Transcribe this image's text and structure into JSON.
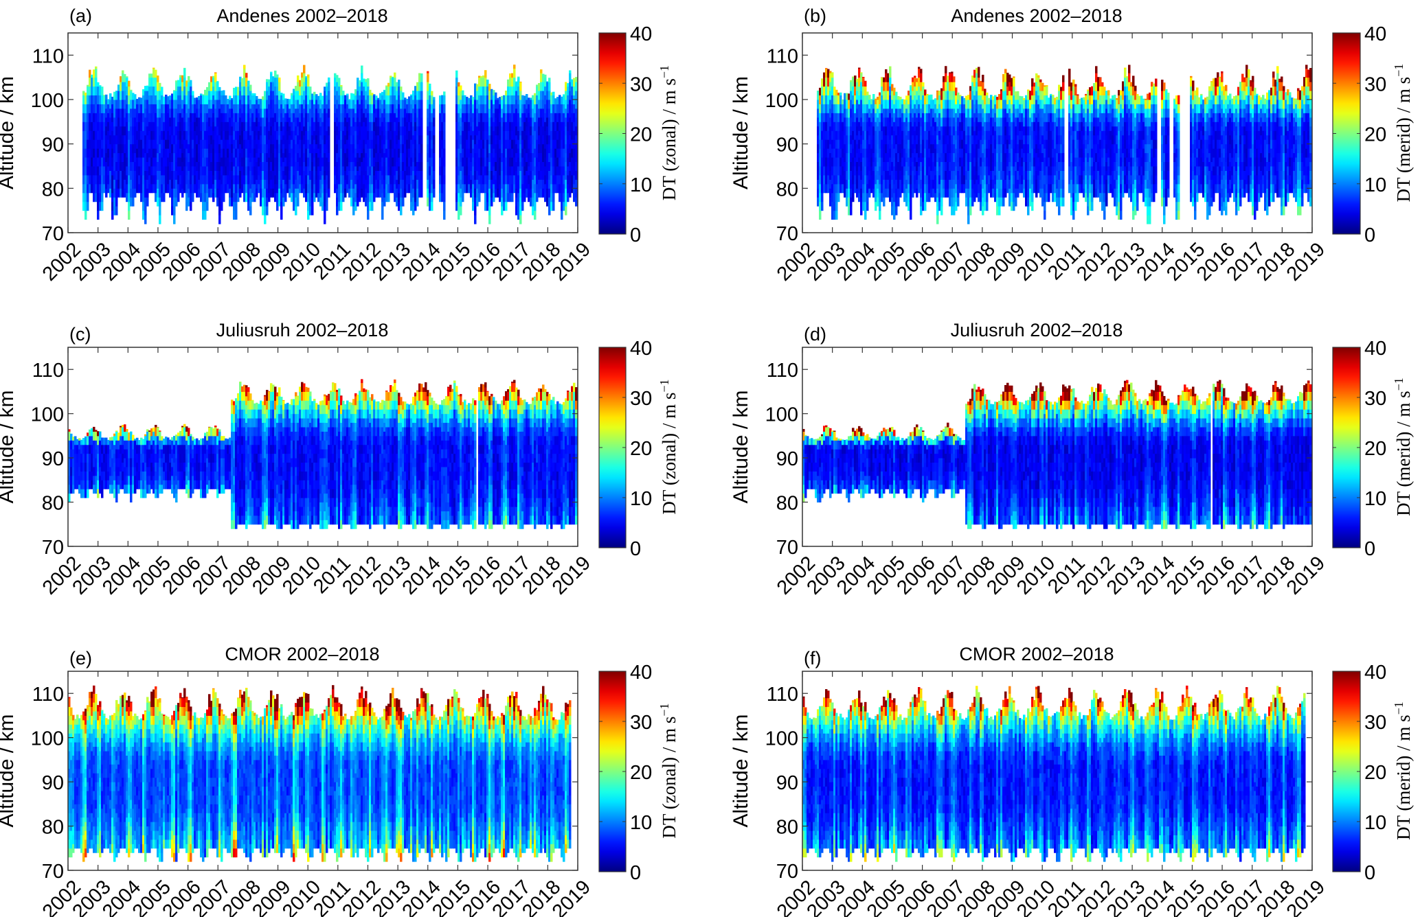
{
  "figure": {
    "description": "Time-altitude cross-sections of diurnal tide (DT) amplitudes, 2002-2018"
  },
  "chart_data": [
    {
      "id": "a",
      "type": "heatmap",
      "panel_label": "(a)",
      "title": "Andenes 2002–2018",
      "xlabel": "",
      "ylabel": "Altitude / km",
      "colorbar_label": "DT (zonal) / m s",
      "colorbar_unit_exp": "−1",
      "x_ticks": [
        "2002",
        "2003",
        "2004",
        "2005",
        "2006",
        "2007",
        "2008",
        "2009",
        "2010",
        "2011",
        "2012",
        "2013",
        "2014",
        "2015",
        "2016",
        "2017",
        "2018",
        "2019"
      ],
      "y_ticks": [
        "70",
        "80",
        "90",
        "100",
        "110"
      ],
      "cb_ticks": [
        "0",
        "10",
        "20",
        "30",
        "40"
      ],
      "xlim": [
        2002,
        2019
      ],
      "ylim": [
        70,
        115
      ],
      "clim": [
        0,
        40
      ],
      "colormap": "jet",
      "data_start": 2002.5,
      "data_end": 2018.95,
      "gaps": [
        [
          2010.75,
          2010.85
        ],
        [
          2013.72,
          2013.78
        ],
        [
          2013.8,
          2013.95
        ],
        [
          2014.25,
          2014.35
        ],
        [
          2014.6,
          2014.95
        ]
      ],
      "top_alt": [
        100,
        108
      ],
      "bottom_alt": [
        80,
        72
      ],
      "base_amp": 6,
      "top_amp": 20,
      "bottom_amp": 12
    },
    {
      "id": "b",
      "type": "heatmap",
      "panel_label": "(b)",
      "title": "Andenes 2002–2018",
      "xlabel": "",
      "ylabel": "Altitude / km",
      "colorbar_label": "DT (merid) / m s",
      "colorbar_unit_exp": "−1",
      "x_ticks": [
        "2002",
        "2003",
        "2004",
        "2005",
        "2006",
        "2007",
        "2008",
        "2009",
        "2010",
        "2011",
        "2012",
        "2013",
        "2014",
        "2015",
        "2016",
        "2017",
        "2018",
        "2019"
      ],
      "y_ticks": [
        "70",
        "80",
        "90",
        "100",
        "110"
      ],
      "cb_ticks": [
        "0",
        "10",
        "20",
        "30",
        "40"
      ],
      "xlim": [
        2002,
        2019
      ],
      "ylim": [
        70,
        115
      ],
      "clim": [
        0,
        40
      ],
      "colormap": "jet",
      "data_start": 2002.5,
      "data_end": 2018.95,
      "gaps": [
        [
          2010.75,
          2010.85
        ],
        [
          2013.72,
          2013.78
        ],
        [
          2013.8,
          2013.95
        ],
        [
          2014.25,
          2014.35
        ],
        [
          2014.6,
          2014.95
        ]
      ],
      "top_alt": [
        100,
        108
      ],
      "bottom_alt": [
        80,
        72
      ],
      "base_amp": 7,
      "top_amp": 38,
      "bottom_amp": 12
    },
    {
      "id": "c",
      "type": "heatmap",
      "panel_label": "(c)",
      "title": "Juliusruh 2002–2018",
      "xlabel": "",
      "ylabel": "Altitude / km",
      "colorbar_label": "DT (zonal) / m s",
      "colorbar_unit_exp": "−1",
      "x_ticks": [
        "2002",
        "2003",
        "2004",
        "2005",
        "2006",
        "2007",
        "2008",
        "2009",
        "2010",
        "2011",
        "2012",
        "2013",
        "2014",
        "2015",
        "2016",
        "2017",
        "2018",
        "2019"
      ],
      "y_ticks": [
        "70",
        "80",
        "90",
        "100",
        "110"
      ],
      "cb_ticks": [
        "0",
        "10",
        "20",
        "30",
        "40"
      ],
      "xlim": [
        2002,
        2019
      ],
      "ylim": [
        70,
        115
      ],
      "clim": [
        0,
        40
      ],
      "colormap": "jet",
      "data_start": 2002.0,
      "data_end": 2018.95,
      "gaps": [
        [
          2015.6,
          2015.7
        ]
      ],
      "regime_change": 2007.4,
      "top_alt_early": [
        94,
        98
      ],
      "bottom_alt_early": [
        84,
        80
      ],
      "top_alt": [
        102,
        108
      ],
      "bottom_alt": [
        76,
        74
      ],
      "base_amp": 7,
      "top_amp": 34,
      "bottom_amp": 14
    },
    {
      "id": "d",
      "type": "heatmap",
      "panel_label": "(d)",
      "title": "Juliusruh 2002–2018",
      "xlabel": "",
      "ylabel": "Altitude / km",
      "colorbar_label": "DT (merid) / m s",
      "colorbar_unit_exp": "−1",
      "x_ticks": [
        "2002",
        "2003",
        "2004",
        "2005",
        "2006",
        "2007",
        "2008",
        "2009",
        "2010",
        "2011",
        "2012",
        "2013",
        "2014",
        "2015",
        "2016",
        "2017",
        "2018",
        "2019"
      ],
      "y_ticks": [
        "70",
        "80",
        "90",
        "100",
        "110"
      ],
      "cb_ticks": [
        "0",
        "10",
        "20",
        "30",
        "40"
      ],
      "xlim": [
        2002,
        2019
      ],
      "ylim": [
        70,
        115
      ],
      "clim": [
        0,
        40
      ],
      "colormap": "jet",
      "data_start": 2002.0,
      "data_end": 2018.95,
      "gaps": [
        [
          2015.6,
          2015.7
        ]
      ],
      "regime_change": 2007.4,
      "top_alt_early": [
        94,
        98
      ],
      "bottom_alt_early": [
        84,
        80
      ],
      "top_alt": [
        102,
        108
      ],
      "bottom_alt": [
        76,
        74
      ],
      "base_amp": 6,
      "top_amp": 40,
      "bottom_amp": 14
    },
    {
      "id": "e",
      "type": "heatmap",
      "panel_label": "(e)",
      "title": "CMOR 2002–2018",
      "xlabel": "",
      "ylabel": "Altitude / km",
      "colorbar_label": "DT (zonal) / m s",
      "colorbar_unit_exp": "−1",
      "x_ticks": [
        "2002",
        "2003",
        "2004",
        "2005",
        "2006",
        "2007",
        "2008",
        "2009",
        "2010",
        "2011",
        "2012",
        "2013",
        "2014",
        "2015",
        "2016",
        "2017",
        "2018",
        "2019"
      ],
      "y_ticks": [
        "70",
        "80",
        "90",
        "100",
        "110"
      ],
      "cb_ticks": [
        "0",
        "10",
        "20",
        "30",
        "40"
      ],
      "xlim": [
        2002,
        2019
      ],
      "ylim": [
        70,
        115
      ],
      "clim": [
        0,
        40
      ],
      "colormap": "jet",
      "data_start": 2002.0,
      "data_end": 2018.75,
      "gaps": [],
      "top_alt": [
        104,
        112
      ],
      "bottom_alt": [
        76,
        72
      ],
      "base_amp": 11,
      "top_amp": 34,
      "bottom_amp": 22
    },
    {
      "id": "f",
      "type": "heatmap",
      "panel_label": "(f)",
      "title": "CMOR 2002–2018",
      "xlabel": "",
      "ylabel": "Altitude / km",
      "colorbar_label": "DT (merid) / m s",
      "colorbar_unit_exp": "−1",
      "x_ticks": [
        "2002",
        "2003",
        "2004",
        "2005",
        "2006",
        "2007",
        "2008",
        "2009",
        "2010",
        "2011",
        "2012",
        "2013",
        "2014",
        "2015",
        "2016",
        "2017",
        "2018",
        "2019"
      ],
      "y_ticks": [
        "70",
        "80",
        "90",
        "100",
        "110"
      ],
      "cb_ticks": [
        "0",
        "10",
        "20",
        "30",
        "40"
      ],
      "xlim": [
        2002,
        2019
      ],
      "ylim": [
        70,
        115
      ],
      "clim": [
        0,
        40
      ],
      "colormap": "jet",
      "data_start": 2002.0,
      "data_end": 2018.75,
      "gaps": [],
      "top_alt": [
        104,
        112
      ],
      "bottom_alt": [
        76,
        72
      ],
      "base_amp": 8,
      "top_amp": 30,
      "bottom_amp": 18
    }
  ]
}
